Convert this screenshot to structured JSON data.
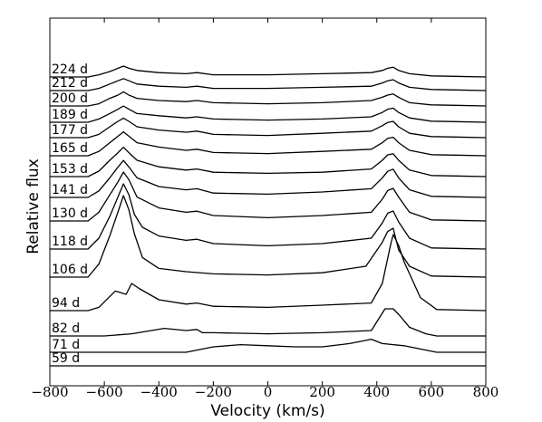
{
  "chart_data": {
    "type": "line",
    "title": "",
    "xlabel": "Velocity (km/s)",
    "ylabel": "Relative flux",
    "xlim": [
      -800,
      800
    ],
    "xticks": [
      -800,
      -600,
      -400,
      -200,
      0,
      200,
      400,
      600,
      800
    ],
    "xtick_labels": [
      "−800",
      "−600",
      "−400",
      "−200",
      "0",
      "200",
      "400",
      "600",
      "800"
    ],
    "yticks": false,
    "grid": false,
    "legend": "none",
    "series": [
      {
        "name": "59 d",
        "x": [
          -800,
          800
        ],
        "y": [
          0,
          0
        ]
      },
      {
        "name": "71 d",
        "x": [
          -800,
          -300,
          -200,
          -100,
          0,
          100,
          200,
          300,
          380,
          420,
          500,
          560,
          620,
          800
        ],
        "y": [
          0,
          0,
          0.05,
          0.07,
          0.06,
          0.05,
          0.05,
          0.08,
          0.12,
          0.08,
          0.06,
          0.03,
          0,
          0
        ]
      },
      {
        "name": "82 d",
        "x": [
          -800,
          -600,
          -500,
          -380,
          -300,
          -260,
          -240,
          -200,
          0,
          200,
          380,
          430,
          460,
          480,
          520,
          580,
          620,
          800
        ],
        "y": [
          0,
          0,
          0.02,
          0.07,
          0.05,
          0.06,
          0.03,
          0.03,
          0.02,
          0.03,
          0.05,
          0.25,
          0.25,
          0.2,
          0.08,
          0.02,
          0,
          0
        ]
      },
      {
        "name": "94 d",
        "x": [
          -800,
          -660,
          -620,
          -560,
          -520,
          -500,
          -470,
          -400,
          -300,
          -260,
          -200,
          0,
          200,
          380,
          420,
          450,
          460,
          480,
          500,
          560,
          620,
          800
        ],
        "y": [
          0,
          0,
          0.03,
          0.18,
          0.15,
          0.25,
          0.2,
          0.1,
          0.06,
          0.07,
          0.04,
          0.03,
          0.05,
          0.07,
          0.25,
          0.6,
          0.7,
          0.6,
          0.45,
          0.12,
          0.01,
          0
        ]
      },
      {
        "name": "106 d",
        "x": [
          -800,
          -660,
          -620,
          -580,
          -550,
          -530,
          -510,
          -490,
          -460,
          -400,
          -300,
          -200,
          0,
          200,
          360,
          420,
          440,
          460,
          480,
          520,
          600,
          800
        ],
        "y": [
          0,
          0,
          0.12,
          0.38,
          0.6,
          0.75,
          0.62,
          0.4,
          0.18,
          0.08,
          0.05,
          0.03,
          0.02,
          0.04,
          0.1,
          0.32,
          0.42,
          0.45,
          0.25,
          0.1,
          0.01,
          0
        ]
      },
      {
        "name": "118 d",
        "x": [
          -800,
          -660,
          -620,
          -580,
          -550,
          -530,
          -510,
          -490,
          -460,
          -400,
          -300,
          -260,
          -200,
          0,
          200,
          380,
          420,
          440,
          460,
          480,
          520,
          600,
          800
        ],
        "y": [
          0,
          0,
          0.1,
          0.3,
          0.48,
          0.6,
          0.5,
          0.32,
          0.2,
          0.12,
          0.08,
          0.09,
          0.05,
          0.03,
          0.05,
          0.1,
          0.24,
          0.33,
          0.35,
          0.25,
          0.1,
          0.01,
          0
        ]
      },
      {
        "name": "130 d",
        "x": [
          -800,
          -660,
          -620,
          -580,
          -550,
          -530,
          -510,
          -480,
          -400,
          -300,
          -260,
          -200,
          0,
          200,
          380,
          420,
          440,
          460,
          480,
          520,
          600,
          800
        ],
        "y": [
          0,
          0,
          0.08,
          0.24,
          0.36,
          0.45,
          0.38,
          0.22,
          0.12,
          0.08,
          0.09,
          0.05,
          0.03,
          0.05,
          0.08,
          0.2,
          0.28,
          0.3,
          0.22,
          0.08,
          0.01,
          0
        ]
      },
      {
        "name": "141 d",
        "x": [
          -800,
          -660,
          -620,
          -580,
          -550,
          -530,
          -510,
          -480,
          -400,
          -300,
          -260,
          -200,
          0,
          200,
          380,
          420,
          440,
          460,
          480,
          520,
          600,
          800
        ],
        "y": [
          0,
          0,
          0.06,
          0.18,
          0.28,
          0.34,
          0.28,
          0.18,
          0.1,
          0.07,
          0.08,
          0.04,
          0.03,
          0.05,
          0.08,
          0.18,
          0.24,
          0.26,
          0.18,
          0.07,
          0.01,
          0
        ]
      },
      {
        "name": "153 d",
        "x": [
          -800,
          -660,
          -620,
          -580,
          -550,
          -530,
          -510,
          -480,
          -400,
          -300,
          -260,
          -200,
          0,
          200,
          380,
          420,
          440,
          460,
          480,
          520,
          600,
          800
        ],
        "y": [
          0,
          0,
          0.05,
          0.15,
          0.22,
          0.27,
          0.22,
          0.15,
          0.09,
          0.06,
          0.07,
          0.04,
          0.03,
          0.04,
          0.07,
          0.15,
          0.2,
          0.21,
          0.15,
          0.06,
          0.01,
          0
        ]
      },
      {
        "name": "165 d",
        "x": [
          -800,
          -660,
          -620,
          -580,
          -550,
          -530,
          -510,
          -480,
          -400,
          -300,
          -260,
          -200,
          0,
          200,
          380,
          420,
          440,
          460,
          480,
          520,
          600,
          800
        ],
        "y": [
          0,
          0,
          0.04,
          0.12,
          0.18,
          0.22,
          0.18,
          0.12,
          0.08,
          0.05,
          0.06,
          0.03,
          0.02,
          0.04,
          0.06,
          0.12,
          0.16,
          0.17,
          0.12,
          0.05,
          0.01,
          0
        ]
      },
      {
        "name": "177 d",
        "x": [
          -800,
          -660,
          -620,
          -580,
          -550,
          -530,
          -510,
          -480,
          -400,
          -300,
          -260,
          -200,
          0,
          200,
          380,
          420,
          440,
          460,
          480,
          520,
          600,
          800
        ],
        "y": [
          0,
          0,
          0.03,
          0.1,
          0.15,
          0.18,
          0.15,
          0.1,
          0.07,
          0.05,
          0.06,
          0.03,
          0.02,
          0.04,
          0.06,
          0.11,
          0.14,
          0.15,
          0.1,
          0.04,
          0.01,
          0
        ]
      },
      {
        "name": "189 d",
        "x": [
          -800,
          -660,
          -620,
          -580,
          -550,
          -530,
          -510,
          -480,
          -400,
          -300,
          -260,
          -200,
          0,
          200,
          380,
          420,
          440,
          460,
          480,
          520,
          600,
          800
        ],
        "y": [
          0,
          0,
          0.03,
          0.08,
          0.12,
          0.15,
          0.12,
          0.08,
          0.06,
          0.04,
          0.05,
          0.03,
          0.02,
          0.03,
          0.05,
          0.09,
          0.12,
          0.13,
          0.09,
          0.04,
          0.01,
          0
        ]
      },
      {
        "name": "200 d",
        "x": [
          -800,
          -660,
          -620,
          -580,
          -550,
          -530,
          -510,
          -480,
          -400,
          -300,
          -260,
          -200,
          0,
          200,
          380,
          420,
          440,
          460,
          480,
          520,
          600,
          800
        ],
        "y": [
          0,
          0,
          0.02,
          0.07,
          0.1,
          0.13,
          0.1,
          0.07,
          0.05,
          0.04,
          0.05,
          0.03,
          0.02,
          0.03,
          0.05,
          0.08,
          0.1,
          0.11,
          0.08,
          0.03,
          0.01,
          0
        ]
      },
      {
        "name": "212 d",
        "x": [
          -800,
          -660,
          -620,
          -580,
          -550,
          -530,
          -510,
          -480,
          -400,
          -300,
          -260,
          -200,
          0,
          200,
          380,
          420,
          440,
          460,
          480,
          520,
          600,
          800
        ],
        "y": [
          0,
          0,
          0.02,
          0.06,
          0.09,
          0.11,
          0.09,
          0.06,
          0.04,
          0.03,
          0.04,
          0.02,
          0.02,
          0.03,
          0.04,
          0.07,
          0.09,
          0.1,
          0.07,
          0.03,
          0.01,
          0
        ]
      },
      {
        "name": "224 d",
        "x": [
          -800,
          -660,
          -620,
          -580,
          -550,
          -530,
          -510,
          -480,
          -400,
          -300,
          -260,
          -200,
          0,
          200,
          380,
          420,
          440,
          460,
          480,
          520,
          600,
          800
        ],
        "y": [
          0,
          0,
          0.02,
          0.05,
          0.08,
          0.1,
          0.08,
          0.06,
          0.04,
          0.03,
          0.04,
          0.02,
          0.02,
          0.03,
          0.04,
          0.06,
          0.08,
          0.09,
          0.06,
          0.03,
          0.01,
          0
        ]
      }
    ]
  }
}
